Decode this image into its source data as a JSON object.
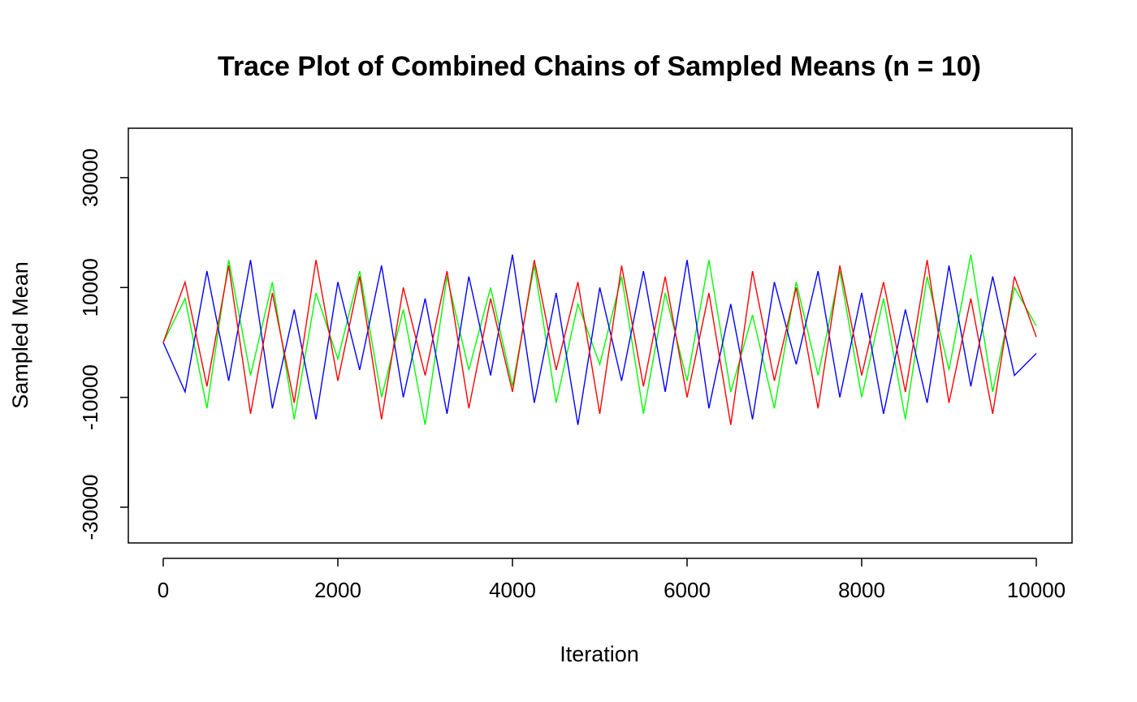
{
  "chart_data": {
    "type": "line",
    "title": "Trace Plot of Combined Chains of Sampled Means (n = 10)",
    "xlabel": "Iteration",
    "ylabel": "Sampled Mean",
    "xlim": [
      0,
      10000
    ],
    "ylim": [
      -36500,
      39000
    ],
    "x_ticks": [
      0,
      2000,
      4000,
      6000,
      8000,
      10000
    ],
    "x_tick_labels": [
      "0",
      "2000",
      "4000",
      "6000",
      "8000",
      "10000"
    ],
    "y_ticks": [
      -30000,
      -10000,
      10000,
      30000
    ],
    "y_tick_labels": [
      "-30000",
      "-10000",
      "10000",
      "30000"
    ],
    "grid": false,
    "legend": "none",
    "series": [
      {
        "color": "#00ff00",
        "x": [
          0,
          250,
          500,
          750,
          1000,
          1250,
          1500,
          1750,
          2000,
          2250,
          2500,
          2750,
          3000,
          3250,
          3500,
          3750,
          4000,
          4250,
          4500,
          4750,
          5000,
          5250,
          5500,
          5750,
          6000,
          6250,
          6500,
          6750,
          7000,
          7250,
          7500,
          7750,
          8000,
          8250,
          8500,
          8750,
          9000,
          9250,
          9500,
          9750,
          10000
        ],
        "y": [
          0,
          8000,
          -12000,
          15000,
          -6000,
          11000,
          -14000,
          9000,
          -3000,
          13000,
          -10000,
          6000,
          -15000,
          12000,
          -5000,
          10000,
          -8000,
          14000,
          -11000,
          7000,
          -4000,
          12000,
          -13000,
          9000,
          -7000,
          15000,
          -9000,
          5000,
          -12000,
          11000,
          -6000,
          13000,
          -10000,
          8000,
          -14000,
          12000,
          -5000,
          16000,
          -9000,
          10000,
          3000
        ]
      },
      {
        "color": "#0000ff",
        "x": [
          0,
          250,
          500,
          750,
          1000,
          1250,
          1500,
          1750,
          2000,
          2250,
          2500,
          2750,
          3000,
          3250,
          3500,
          3750,
          4000,
          4250,
          4500,
          4750,
          5000,
          5250,
          5500,
          5750,
          6000,
          6250,
          6500,
          6750,
          7000,
          7250,
          7500,
          7750,
          8000,
          8250,
          8500,
          8750,
          9000,
          9250,
          9500,
          9750,
          10000
        ],
        "y": [
          0,
          -9000,
          13000,
          -7000,
          15000,
          -12000,
          6000,
          -14000,
          11000,
          -5000,
          14000,
          -10000,
          8000,
          -13000,
          12000,
          -6000,
          16000,
          -11000,
          9000,
          -15000,
          10000,
          -7000,
          13000,
          -9000,
          15000,
          -12000,
          7000,
          -14000,
          11000,
          -4000,
          13000,
          -10000,
          9000,
          -13000,
          6000,
          -11000,
          14000,
          -8000,
          12000,
          -6000,
          -2000
        ]
      },
      {
        "color": "#ff0000",
        "x": [
          0,
          250,
          500,
          750,
          1000,
          1250,
          1500,
          1750,
          2000,
          2250,
          2500,
          2750,
          3000,
          3250,
          3500,
          3750,
          4000,
          4250,
          4500,
          4750,
          5000,
          5250,
          5500,
          5750,
          6000,
          6250,
          6500,
          6750,
          7000,
          7250,
          7500,
          7750,
          8000,
          8250,
          8500,
          8750,
          9000,
          9250,
          9500,
          9750,
          10000
        ],
        "y": [
          0,
          11000,
          -8000,
          14000,
          -13000,
          9000,
          -11000,
          15000,
          -7000,
          12000,
          -14000,
          10000,
          -6000,
          13000,
          -12000,
          8000,
          -9000,
          15000,
          -5000,
          11000,
          -13000,
          14000,
          -8000,
          12000,
          -10000,
          9000,
          -15000,
          13000,
          -7000,
          10000,
          -12000,
          14000,
          -6000,
          11000,
          -9000,
          15000,
          -11000,
          8000,
          -13000,
          12000,
          1000
        ]
      }
    ]
  }
}
